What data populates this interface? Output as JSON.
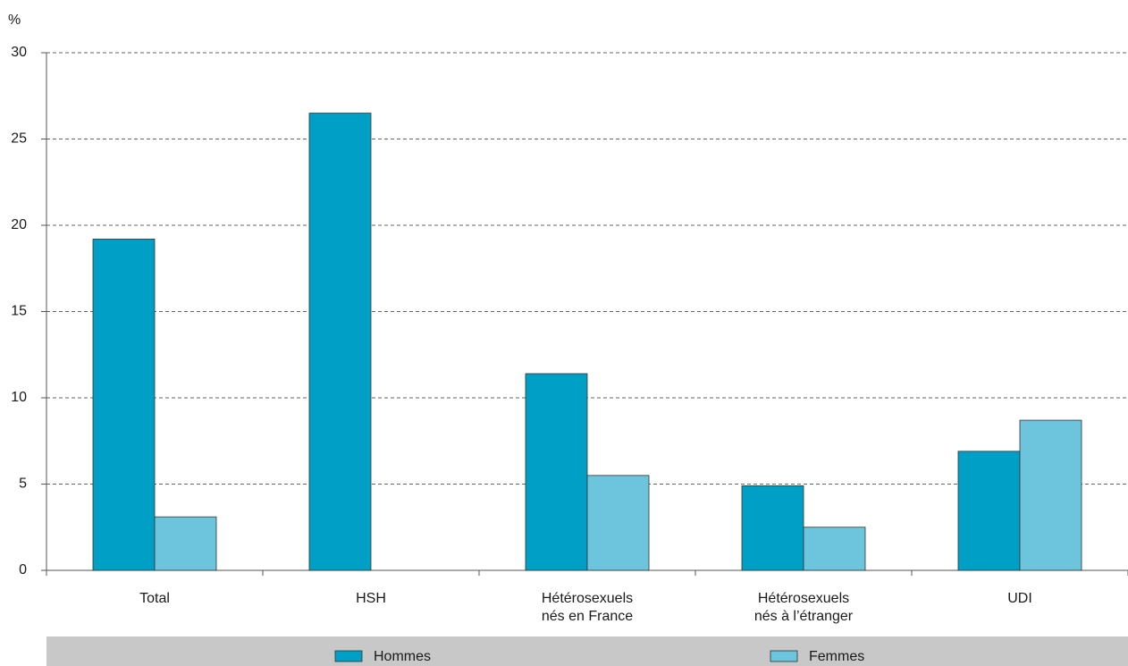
{
  "chart_data": {
    "type": "bar",
    "y_label": "%",
    "categories": [
      [
        "Total"
      ],
      [
        "HSH"
      ],
      [
        "Hétérosexuels",
        "nés en France"
      ],
      [
        "Hétérosexuels",
        "nés à l’étranger"
      ],
      [
        "UDI"
      ]
    ],
    "series": [
      {
        "name": "Hommes",
        "color": "#00a0c6",
        "values": [
          19.2,
          26.5,
          11.4,
          4.9,
          6.9
        ]
      },
      {
        "name": "Femmes",
        "color": "#6cc5dc",
        "values": [
          3.1,
          null,
          5.5,
          2.5,
          8.7
        ]
      }
    ],
    "ylim": [
      0,
      30
    ],
    "yticks": [
      0,
      5,
      10,
      15,
      20,
      25,
      30
    ],
    "grid": true,
    "legend": "bottom"
  }
}
